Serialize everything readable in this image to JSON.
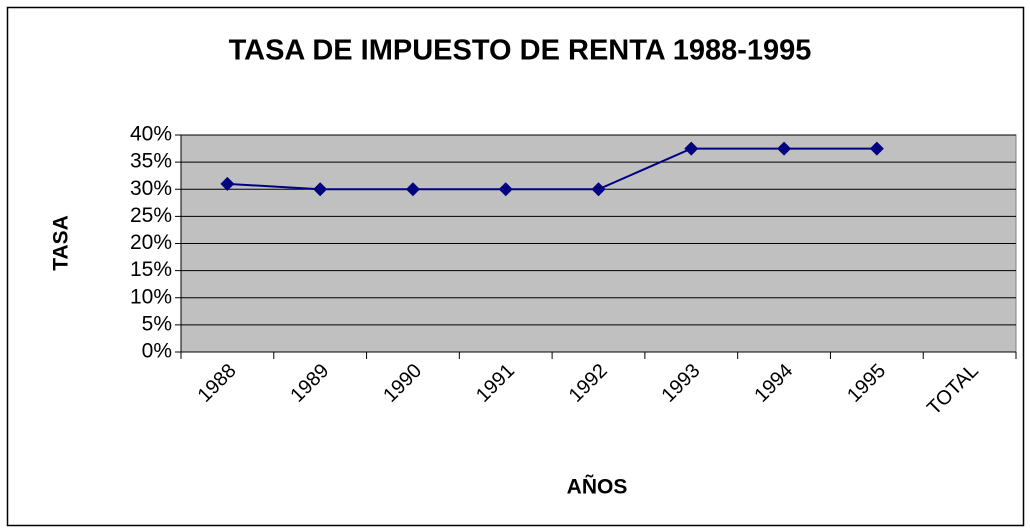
{
  "chart_data": {
    "type": "line",
    "title": "TASA DE IMPUESTO DE RENTA 1988-1995",
    "x_label": "AÑOS",
    "y_label": "TASA",
    "categories": [
      "1988",
      "1989",
      "1990",
      "1991",
      "1992",
      "1993",
      "1994",
      "1995",
      "TOTAL"
    ],
    "series": [
      {
        "name": "TASA",
        "color": "#000080",
        "values": [
          31,
          30,
          30,
          30,
          30,
          37.5,
          37.5,
          37.5,
          null
        ]
      }
    ],
    "ylim": [
      0,
      40
    ],
    "yticks": [
      {
        "value": 0,
        "label": "0%"
      },
      {
        "value": 5,
        "label": "5%"
      },
      {
        "value": 10,
        "label": "10%"
      },
      {
        "value": 15,
        "label": "15%"
      },
      {
        "value": 20,
        "label": "20%"
      },
      {
        "value": 25,
        "label": "25%"
      },
      {
        "value": 30,
        "label": "30%"
      },
      {
        "value": 35,
        "label": "35%"
      },
      {
        "value": 40,
        "label": "40%"
      }
    ],
    "grid": true,
    "plot_background": "#c0c0c0"
  }
}
